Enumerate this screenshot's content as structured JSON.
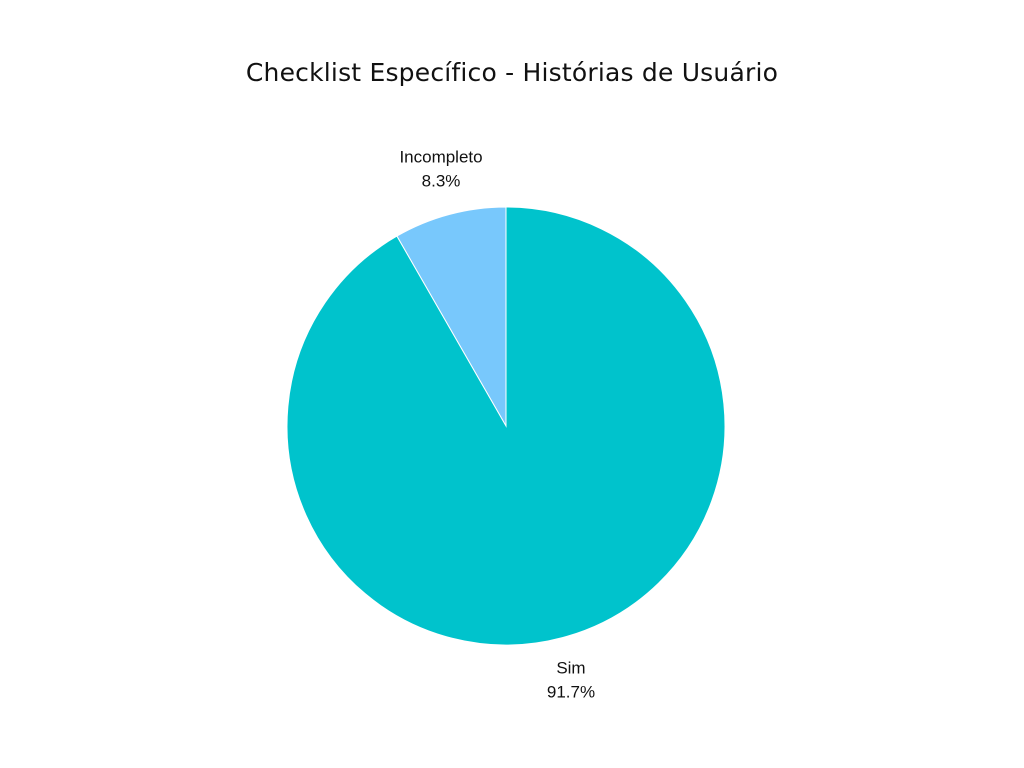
{
  "chart_data": {
    "type": "pie",
    "title": "Checklist Específico - Histórias de Usuário",
    "slices": [
      {
        "label": "Incompleto",
        "value": 8.3,
        "value_label": "8.3%",
        "color": "#78c8fc"
      },
      {
        "label": "Sim",
        "value": 91.7,
        "value_label": "91.7%",
        "color": "#00c3cc"
      }
    ],
    "start_angle_deg": 0,
    "direction": "counterclockwise",
    "legend": "none"
  }
}
